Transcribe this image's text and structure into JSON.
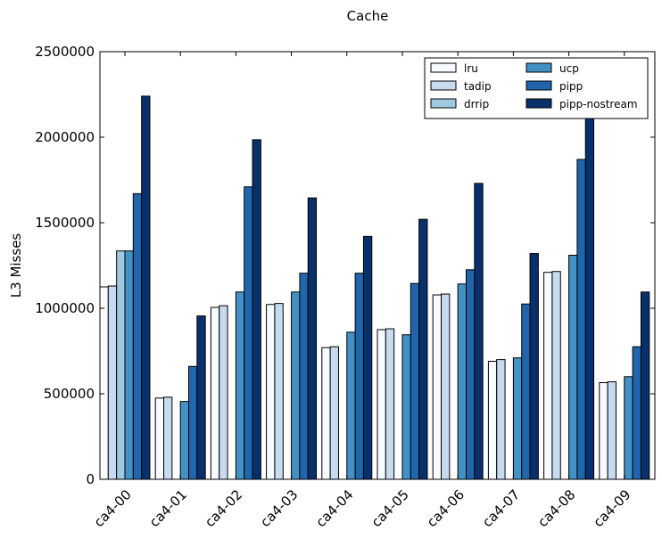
{
  "chart_data": {
    "type": "bar",
    "title": "Cache",
    "xlabel": "",
    "ylabel": "L3 Misses",
    "ylim": [
      0,
      2500000
    ],
    "yticks": [
      0,
      500000,
      1000000,
      1500000,
      2000000,
      2500000
    ],
    "ytick_labels": [
      "0",
      "500000",
      "1000000",
      "1500000",
      "2000000",
      "2500000"
    ],
    "grid": false,
    "legend_position": "top-right",
    "legend_columns": 2,
    "categories": [
      "ca4-00",
      "ca4-01",
      "ca4-02",
      "ca4-03",
      "ca4-04",
      "ca4-05",
      "ca4-06",
      "ca4-07",
      "ca4-08",
      "ca4-09"
    ],
    "series": [
      {
        "name": "lru",
        "color": "#f7fbff",
        "values": [
          1125000,
          475000,
          1005000,
          1022000,
          770000,
          875000,
          1078000,
          690000,
          1210000,
          565000
        ]
      },
      {
        "name": "tadip",
        "color": "#c6dbef",
        "values": [
          1130000,
          480000,
          1015000,
          1028000,
          775000,
          880000,
          1083000,
          700000,
          1215000,
          570000
        ]
      },
      {
        "name": "drrip",
        "color": "#9ecae1",
        "values": [
          1335000,
          0,
          0,
          0,
          0,
          0,
          0,
          0,
          0,
          0
        ]
      },
      {
        "name": "ucp",
        "color": "#4292c6",
        "values": [
          1335000,
          455000,
          1095000,
          1095000,
          860000,
          845000,
          1142000,
          710000,
          1310000,
          600000
        ]
      },
      {
        "name": "pipp",
        "color": "#2166ac",
        "values": [
          1670000,
          660000,
          1710000,
          1205000,
          1205000,
          1145000,
          1225000,
          1025000,
          1870000,
          775000
        ]
      },
      {
        "name": "pipp-nostream",
        "color": "#08306b",
        "values": [
          2240000,
          955000,
          1985000,
          1645000,
          1420000,
          1520000,
          1730000,
          1320000,
          2130000,
          1095000
        ]
      }
    ]
  }
}
